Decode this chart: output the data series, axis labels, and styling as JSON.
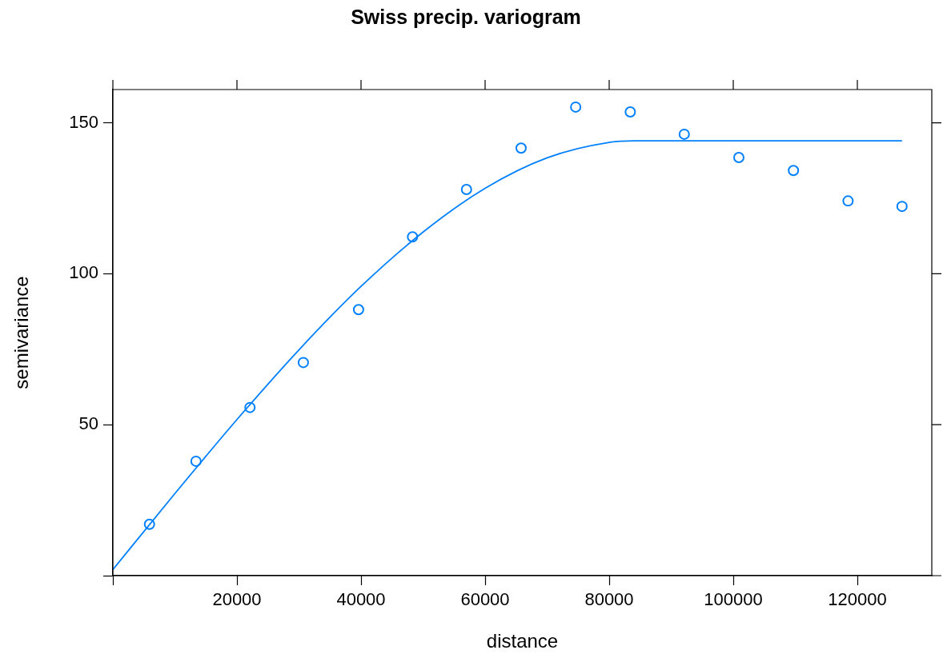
{
  "chart_data": {
    "type": "scatter",
    "title": "Swiss precip. variogram",
    "xlabel": "distance",
    "ylabel": "semivariance",
    "xlim": [
      0,
      132000
    ],
    "ylim": [
      0,
      161
    ],
    "xticks": [
      {
        "value": 0,
        "label": null
      },
      20000,
      40000,
      60000,
      80000,
      100000,
      120000
    ],
    "yticks": [
      {
        "value": 0,
        "label": null
      },
      50,
      100,
      150
    ],
    "grid": false,
    "legend": false,
    "marker": "circle",
    "series": [
      {
        "color": "#0080ff",
        "x": [
          5900,
          13400,
          22100,
          30700,
          39600,
          48300,
          57000,
          65800,
          74600,
          83400,
          92100,
          100900,
          109700,
          118500,
          127200
        ],
        "values": [
          17.0,
          37.9,
          55.7,
          70.6,
          88.1,
          112.2,
          127.9,
          141.6,
          155.2,
          153.6,
          146.2,
          138.5,
          134.2,
          124.1,
          122.3
        ]
      },
      {
        "type": "line",
        "color": "#0080ff",
        "marker": "none",
        "line_style": "solid",
        "x": [
          0,
          10000,
          20000,
          30000,
          40000,
          50000,
          60000,
          70000,
          80000,
          84000,
          127200
        ],
        "values": [
          2.0,
          27.2,
          51.7,
          74.8,
          95.8,
          113.8,
          128.3,
          138.4,
          143.5,
          144.0,
          144.0
        ]
      }
    ]
  }
}
